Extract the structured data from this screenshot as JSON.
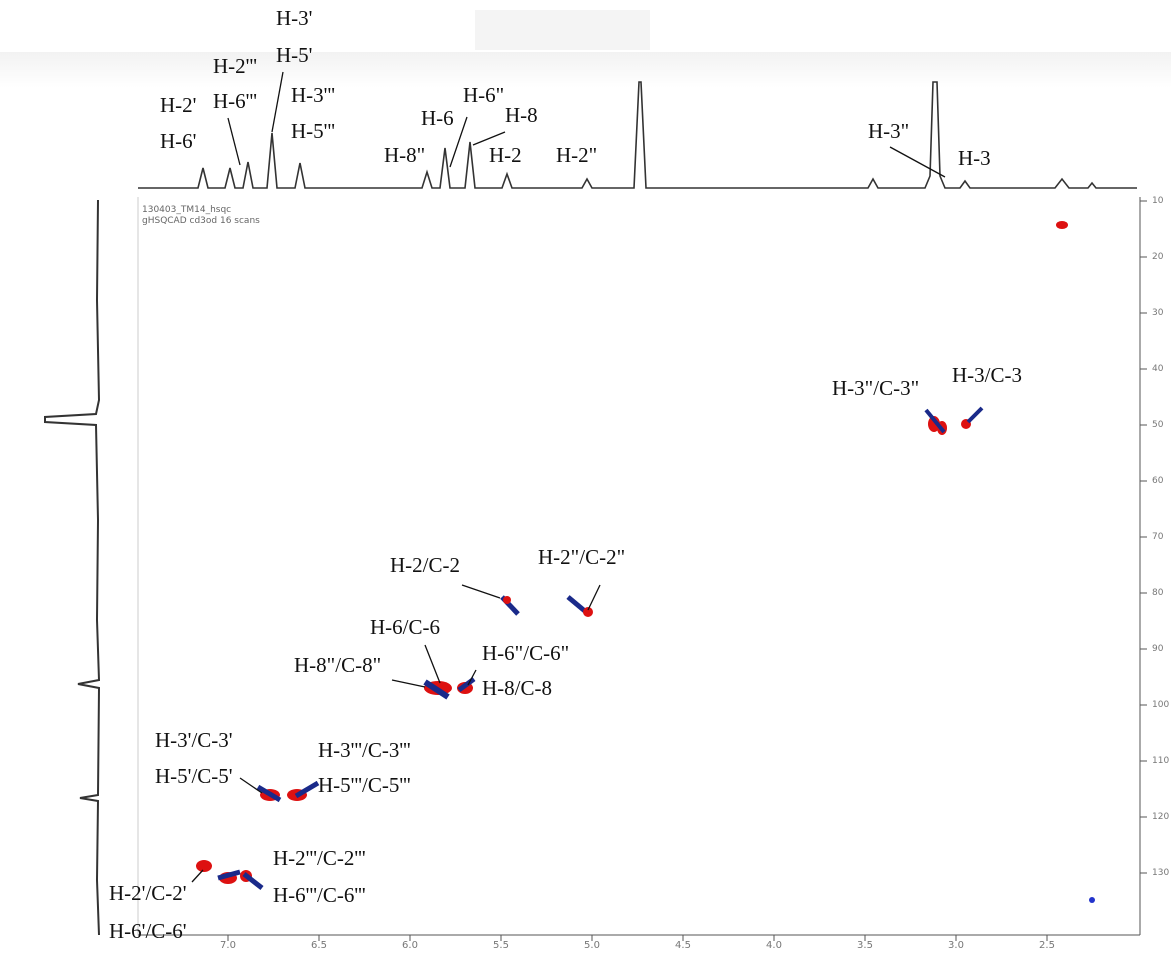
{
  "spectrum_info": {
    "file": "130403_TM14_hsqc",
    "experiment": "gHSQCAD cd3od 16 scans"
  },
  "proton_labels": [
    "H-2'",
    "H-6'",
    "H-2'''",
    "H-6'''",
    "H-3'",
    "H-5'",
    "H-3'''",
    "H-5'''",
    "H-8\"",
    "H-6",
    "H-6\"",
    "H-8",
    "H-2",
    "H-2\"",
    "H-3\"",
    "H-3"
  ],
  "cross_peak_labels": [
    "H-3\"/C-3\"",
    "H-3/C-3",
    "H-2/C-2",
    "H-2\"/C-2\"",
    "H-6/C-6",
    "H-8\"/C-8\"",
    "H-6\"/C-6\"",
    "H-8/C-8",
    "H-3'/C-3'",
    "H-5'/C-5'",
    "H-3'''/C-3'''",
    "H-5'''/C-5'''",
    "H-2'''/C-2'''",
    "H-6'''/C-6'''",
    "H-2'/C-2'",
    "H-6'/C-6'"
  ],
  "x_ticks": [
    "7.0",
    "6.5",
    "6.0",
    "5.5",
    "5.0",
    "4.5",
    "4.0",
    "3.5",
    "3.0",
    "2.5"
  ],
  "y_ticks": [
    "10",
    "20",
    "30",
    "40",
    "50",
    "60",
    "70",
    "80",
    "90",
    "100",
    "110",
    "120",
    "130"
  ]
}
